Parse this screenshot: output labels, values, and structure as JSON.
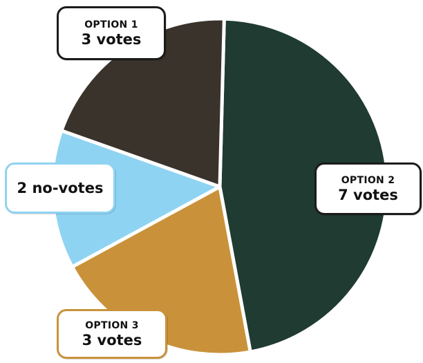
{
  "chart_data": {
    "type": "pie",
    "title": "",
    "slices": [
      {
        "label": "OPTION 2",
        "votes_text": "7 votes",
        "value": 7,
        "color": "#203b31"
      },
      {
        "label": "OPTION 3",
        "votes_text": "3 votes",
        "value": 3,
        "color": "#c9923a"
      },
      {
        "label": "",
        "votes_text": "2 no-votes",
        "value": 2,
        "color": "#8fd3f2"
      },
      {
        "label": "OPTION 1",
        "votes_text": "3 votes",
        "value": 3,
        "color": "#3a332b"
      }
    ],
    "slice_separator_color": "#ffffff",
    "callout_border_default": "#1b1b1b"
  }
}
